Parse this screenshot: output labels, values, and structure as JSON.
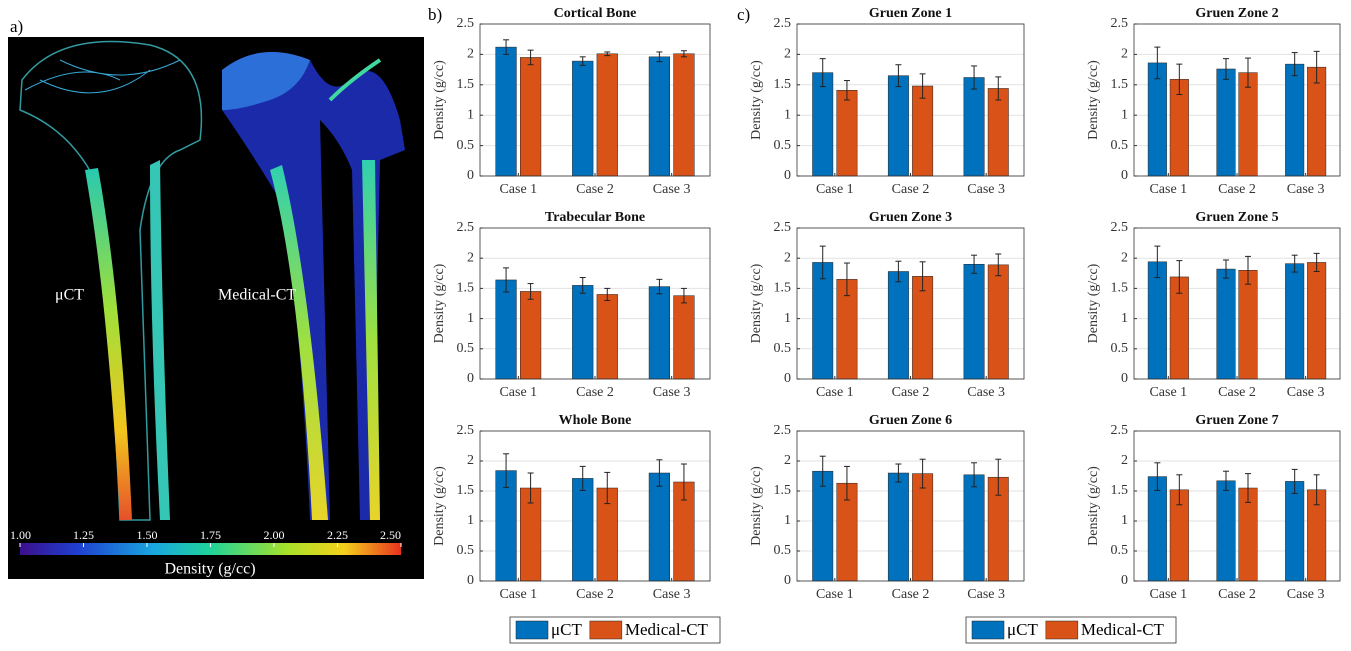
{
  "panel_labels": [
    "a)",
    "b)",
    "c)"
  ],
  "image_labels": [
    "μCT",
    "Medical-CT"
  ],
  "colorbar": {
    "label": "Density (g/cc)",
    "lim": [
      1,
      2.5
    ],
    "ticks": [
      {
        "value": 1,
        "label": "1.00"
      },
      {
        "value": 1.25,
        "label": "1.25"
      },
      {
        "value": 1.5,
        "label": "1.50"
      },
      {
        "value": 1.75,
        "label": "1.75"
      },
      {
        "value": 2,
        "label": "2.00"
      },
      {
        "value": 2.25,
        "label": "2.25"
      },
      {
        "value": 2.5,
        "label": "2.50"
      }
    ]
  },
  "chart_data": [
    {
      "type": "bar",
      "title": "Cortical Bone",
      "ylabel": "Density (g/cc)",
      "categories": [
        "Case 1",
        "Case 2",
        "Case 3"
      ],
      "ylim": [
        0,
        2.5
      ],
      "yticks": [
        0,
        0.5,
        1,
        1.5,
        2,
        2.5
      ],
      "grid": true,
      "series": [
        {
          "name": "μCT",
          "color": "#0072bd",
          "values": [
            2.12,
            1.89,
            1.96
          ],
          "errors": [
            0.12,
            0.07,
            0.08
          ]
        },
        {
          "name": "Medical-CT",
          "color": "#d95319",
          "values": [
            1.95,
            2.01,
            2.01
          ],
          "errors": [
            0.12,
            0.03,
            0.05
          ]
        }
      ]
    },
    {
      "type": "bar",
      "title": "Trabecular Bone",
      "ylabel": "Density (g/cc)",
      "categories": [
        "Case 1",
        "Case 2",
        "Case 3"
      ],
      "ylim": [
        0,
        2.5
      ],
      "yticks": [
        0,
        0.5,
        1,
        1.5,
        2,
        2.5
      ],
      "grid": true,
      "series": [
        {
          "name": "μCT",
          "color": "#0072bd",
          "values": [
            1.64,
            1.55,
            1.53
          ],
          "errors": [
            0.2,
            0.13,
            0.12
          ]
        },
        {
          "name": "Medical-CT",
          "color": "#d95319",
          "values": [
            1.45,
            1.4,
            1.38
          ],
          "errors": [
            0.13,
            0.1,
            0.12
          ]
        }
      ]
    },
    {
      "type": "bar",
      "title": "Whole Bone",
      "ylabel": "Density (g/cc)",
      "categories": [
        "Case 1",
        "Case 2",
        "Case 3"
      ],
      "ylim": [
        0,
        2.5
      ],
      "yticks": [
        0,
        0.5,
        1,
        1.5,
        2,
        2.5
      ],
      "grid": true,
      "series": [
        {
          "name": "μCT",
          "color": "#0072bd",
          "values": [
            1.84,
            1.71,
            1.8
          ],
          "errors": [
            0.28,
            0.2,
            0.22
          ]
        },
        {
          "name": "Medical-CT",
          "color": "#d95319",
          "values": [
            1.55,
            1.55,
            1.65
          ],
          "errors": [
            0.25,
            0.26,
            0.3
          ]
        }
      ]
    },
    {
      "type": "bar",
      "title": "Gruen Zone 1",
      "ylabel": "Density (g/cc)",
      "categories": [
        "Case 1",
        "Case 2",
        "Case 3"
      ],
      "ylim": [
        0,
        2.5
      ],
      "yticks": [
        0,
        0.5,
        1,
        1.5,
        2,
        2.5
      ],
      "grid": true,
      "series": [
        {
          "name": "μCT",
          "color": "#0072bd",
          "values": [
            1.7,
            1.65,
            1.62
          ],
          "errors": [
            0.23,
            0.18,
            0.19
          ]
        },
        {
          "name": "Medical-CT",
          "color": "#d95319",
          "values": [
            1.41,
            1.48,
            1.44
          ],
          "errors": [
            0.16,
            0.2,
            0.19
          ]
        }
      ]
    },
    {
      "type": "bar",
      "title": "Gruen Zone 2",
      "ylabel": "Density (g/cc)",
      "categories": [
        "Case 1",
        "Case 2",
        "Case 3"
      ],
      "ylim": [
        0,
        2.5
      ],
      "yticks": [
        0,
        0.5,
        1,
        1.5,
        2,
        2.5
      ],
      "grid": true,
      "series": [
        {
          "name": "μCT",
          "color": "#0072bd",
          "values": [
            1.86,
            1.76,
            1.84
          ],
          "errors": [
            0.26,
            0.17,
            0.19
          ]
        },
        {
          "name": "Medical-CT",
          "color": "#d95319",
          "values": [
            1.59,
            1.7,
            1.79
          ],
          "errors": [
            0.25,
            0.24,
            0.26
          ]
        }
      ]
    },
    {
      "type": "bar",
      "title": "Gruen Zone 3",
      "ylabel": "Density (g/cc)",
      "categories": [
        "Case 1",
        "Case 2",
        "Case 3"
      ],
      "ylim": [
        0,
        2.5
      ],
      "yticks": [
        0,
        0.5,
        1,
        1.5,
        2,
        2.5
      ],
      "grid": true,
      "series": [
        {
          "name": "μCT",
          "color": "#0072bd",
          "values": [
            1.93,
            1.78,
            1.9
          ],
          "errors": [
            0.27,
            0.17,
            0.15
          ]
        },
        {
          "name": "Medical-CT",
          "color": "#d95319",
          "values": [
            1.65,
            1.7,
            1.89
          ],
          "errors": [
            0.27,
            0.24,
            0.18
          ]
        }
      ]
    },
    {
      "type": "bar",
      "title": "Gruen Zone 5",
      "ylabel": "Density (g/cc)",
      "categories": [
        "Case 1",
        "Case 2",
        "Case 3"
      ],
      "ylim": [
        0,
        2.5
      ],
      "yticks": [
        0,
        0.5,
        1,
        1.5,
        2,
        2.5
      ],
      "grid": true,
      "series": [
        {
          "name": "μCT",
          "color": "#0072bd",
          "values": [
            1.94,
            1.82,
            1.91
          ],
          "errors": [
            0.26,
            0.15,
            0.14
          ]
        },
        {
          "name": "Medical-CT",
          "color": "#d95319",
          "values": [
            1.69,
            1.8,
            1.93
          ],
          "errors": [
            0.27,
            0.23,
            0.15
          ]
        }
      ]
    },
    {
      "type": "bar",
      "title": "Gruen Zone 6",
      "ylabel": "Density (g/cc)",
      "categories": [
        "Case 1",
        "Case 2",
        "Case 3"
      ],
      "ylim": [
        0,
        2.5
      ],
      "yticks": [
        0,
        0.5,
        1,
        1.5,
        2,
        2.5
      ],
      "grid": true,
      "series": [
        {
          "name": "μCT",
          "color": "#0072bd",
          "values": [
            1.83,
            1.8,
            1.77
          ],
          "errors": [
            0.25,
            0.15,
            0.2
          ]
        },
        {
          "name": "Medical-CT",
          "color": "#d95319",
          "values": [
            1.63,
            1.79,
            1.73
          ],
          "errors": [
            0.28,
            0.24,
            0.3
          ]
        }
      ]
    },
    {
      "type": "bar",
      "title": "Gruen Zone 7",
      "ylabel": "Density (g/cc)",
      "categories": [
        "Case 1",
        "Case 2",
        "Case 3"
      ],
      "ylim": [
        0,
        2.5
      ],
      "yticks": [
        0,
        0.5,
        1,
        1.5,
        2,
        2.5
      ],
      "grid": true,
      "series": [
        {
          "name": "μCT",
          "color": "#0072bd",
          "values": [
            1.74,
            1.67,
            1.66
          ],
          "errors": [
            0.23,
            0.16,
            0.2
          ]
        },
        {
          "name": "Medical-CT",
          "color": "#d95319",
          "values": [
            1.52,
            1.55,
            1.52
          ],
          "errors": [
            0.25,
            0.24,
            0.25
          ]
        }
      ]
    }
  ]
}
